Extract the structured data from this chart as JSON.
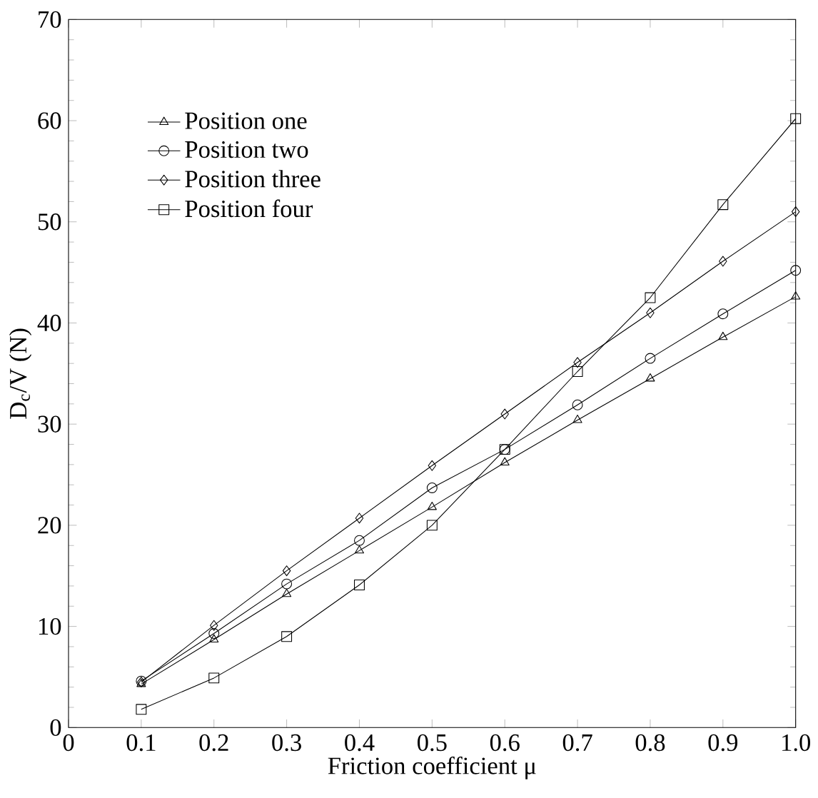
{
  "chart_data": {
    "type": "line",
    "xlabel": "Friction coefficient μ",
    "ylabel": "D$_{c}$/V (N)",
    "x": [
      0.1,
      0.2,
      0.3,
      0.4,
      0.5,
      0.6,
      0.7,
      0.8,
      0.9,
      1.0
    ],
    "series": [
      {
        "name": "Position one",
        "color": "#000000",
        "marker": "triangle",
        "values": [
          4.3,
          8.7,
          13.2,
          17.5,
          21.8,
          26.2,
          30.4,
          34.5,
          38.6,
          42.6
        ]
      },
      {
        "name": "Position two",
        "color": "#000000",
        "marker": "circle",
        "values": [
          4.6,
          9.3,
          14.2,
          18.5,
          23.7,
          27.5,
          31.9,
          36.5,
          40.9,
          45.2
        ]
      },
      {
        "name": "Position three",
        "color": "#000000",
        "marker": "diamond",
        "values": [
          4.5,
          10.1,
          15.5,
          20.7,
          25.9,
          31.0,
          36.1,
          41.0,
          46.1,
          51.0
        ]
      },
      {
        "name": "Position four",
        "color": "#000000",
        "marker": "square",
        "values": [
          1.8,
          4.9,
          9.0,
          14.1,
          20.0,
          27.5,
          35.2,
          42.5,
          51.7,
          60.2
        ]
      }
    ],
    "xlim": [
      0,
      1.0
    ],
    "xticks": [
      0,
      0.1,
      0.2,
      0.3,
      0.4,
      0.5,
      0.6,
      0.7,
      0.8,
      0.9,
      {
        "value": 1.0,
        "label": "1.0"
      }
    ],
    "ylim": [
      0,
      70
    ],
    "yticks": [
      0,
      10,
      20,
      30,
      40,
      50,
      60,
      70
    ],
    "legend": "top left",
    "grid": false,
    "line_style": "solid"
  }
}
